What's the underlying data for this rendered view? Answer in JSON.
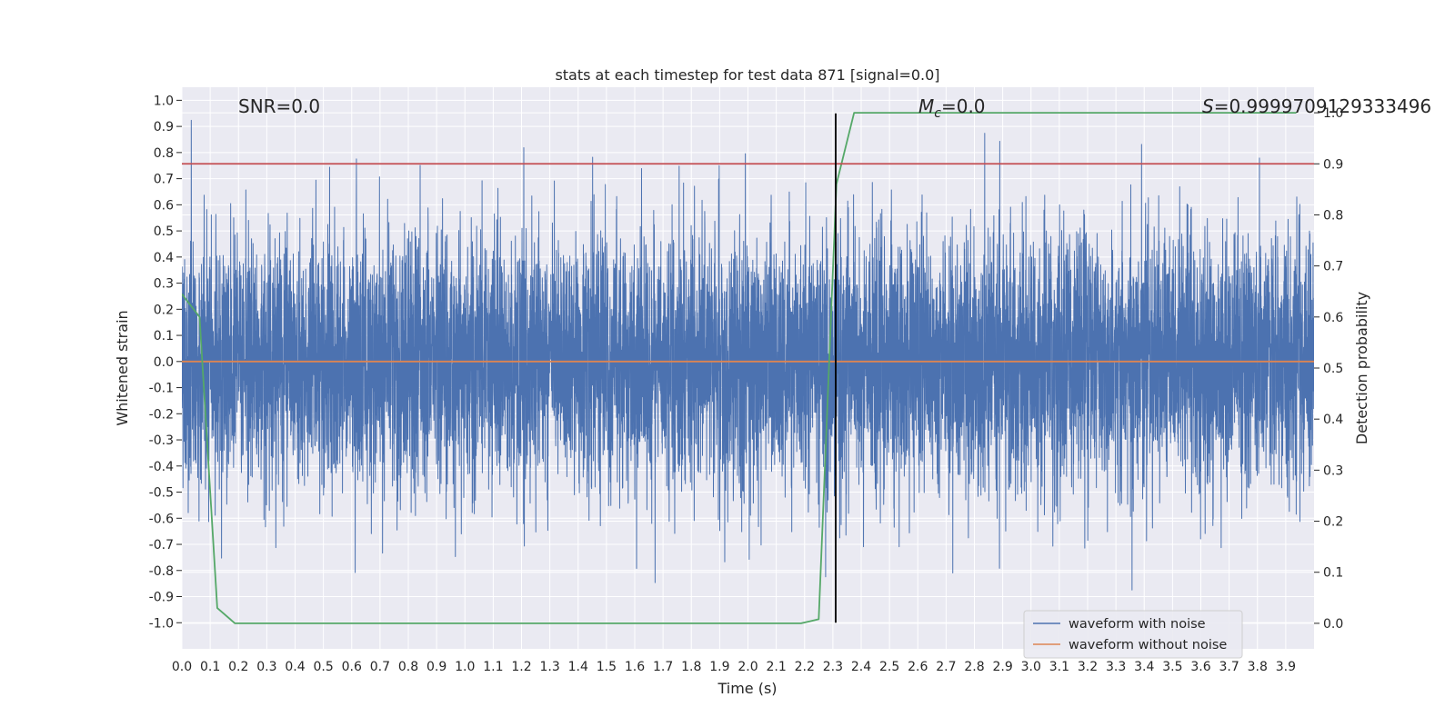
{
  "chart_data": {
    "type": "line",
    "title": "stats at each timestep for test data 871 [signal=0.0]",
    "xlabel": "Time (s)",
    "ylabel": "Whitened strain",
    "ylabel_right": "Detection probability",
    "xlim": [
      0.0,
      4.0
    ],
    "ylim": [
      -1.1,
      1.05
    ],
    "ylim_right": [
      -0.05,
      1.05
    ],
    "x_ticks": [
      "0.0",
      "0.1",
      "0.2",
      "0.3",
      "0.4",
      "0.5",
      "0.6",
      "0.7",
      "0.8",
      "0.9",
      "1.0",
      "1.1",
      "1.2",
      "1.3",
      "1.4",
      "1.5",
      "1.6",
      "1.7",
      "1.8",
      "1.9",
      "2.0",
      "2.1",
      "2.2",
      "2.3",
      "2.4",
      "2.5",
      "2.6",
      "2.7",
      "2.8",
      "2.9",
      "3.0",
      "3.1",
      "3.2",
      "3.3",
      "3.4",
      "3.5",
      "3.6",
      "3.7",
      "3.8",
      "3.9"
    ],
    "y_ticks": [
      "1.0",
      "0.9",
      "0.8",
      "0.7",
      "0.6",
      "0.5",
      "0.4",
      "0.3",
      "0.2",
      "0.1",
      "0.0",
      "-0.1",
      "-0.2",
      "-0.3",
      "-0.4",
      "-0.5",
      "-0.6",
      "-0.7",
      "-0.8",
      "-0.9",
      "-1.0"
    ],
    "y_right_ticks": [
      "1.0",
      "0.9",
      "0.8",
      "0.7",
      "0.6",
      "0.5",
      "0.4",
      "0.3",
      "0.2",
      "0.1",
      "0.0"
    ],
    "grid": true,
    "annotations": {
      "snr": "SNR=0.0",
      "mc": "=0.0",
      "mc_symbol": "M",
      "mc_subscript": "c",
      "s_symbol": "S",
      "s": "=0.9999709129333496"
    },
    "legend": {
      "position": "lower-right",
      "entries": [
        "waveform with noise",
        "waveform without noise"
      ]
    },
    "series": [
      {
        "name": "waveform with noise",
        "color": "#4c72b0",
        "axis": "left",
        "kind": "noise",
        "sample_rate": 2048,
        "duration": 4.0,
        "sigma": 0.24,
        "clip": [
          -1.0,
          0.95
        ]
      },
      {
        "name": "waveform without noise",
        "color": "#dd8452",
        "axis": "left",
        "x": [
          0.0,
          4.0
        ],
        "y": [
          0.0,
          0.0
        ]
      },
      {
        "name": "detection probability",
        "color": "#55a868",
        "axis": "right",
        "x": [
          0.0,
          0.0625,
          0.125,
          0.1875,
          0.25,
          0.3125,
          0.375,
          0.4375,
          0.5,
          0.5625,
          0.625,
          0.6875,
          0.75,
          0.8125,
          0.875,
          0.9375,
          1.0,
          1.0625,
          1.125,
          1.1875,
          1.25,
          1.3125,
          1.375,
          1.4375,
          1.5,
          1.5625,
          1.625,
          1.6875,
          1.75,
          1.8125,
          1.875,
          1.9375,
          2.0,
          2.0625,
          2.125,
          2.1875,
          2.25,
          2.3125,
          2.375,
          2.4375,
          2.5,
          2.5625,
          2.625,
          2.6875,
          2.75,
          2.8125,
          2.875,
          2.9375,
          3.0,
          3.0625,
          3.125,
          3.1875,
          3.25,
          3.3125,
          3.375,
          3.4375,
          3.5,
          3.5625,
          3.625,
          3.6875,
          3.75,
          3.8125,
          3.875,
          3.9375
        ],
        "y": [
          0.645,
          0.6,
          0.03,
          0.0,
          0.0,
          0.0,
          0.0,
          0.0,
          0.0,
          0.0,
          0.0,
          0.0,
          0.0,
          0.0,
          0.0,
          0.0,
          0.0,
          0.0,
          0.0,
          0.0,
          0.0,
          0.0,
          0.0,
          0.0,
          0.0,
          0.0,
          0.0,
          0.0,
          0.0,
          0.0,
          0.0,
          0.0,
          0.0,
          0.0,
          0.0,
          0.0,
          0.008,
          0.86,
          1.0,
          1.0,
          1.0,
          1.0,
          1.0,
          1.0,
          1.0,
          1.0,
          1.0,
          1.0,
          1.0,
          1.0,
          1.0,
          1.0,
          1.0,
          1.0,
          1.0,
          1.0,
          1.0,
          1.0,
          1.0,
          1.0,
          1.0,
          1.0,
          1.0,
          1.0
        ]
      },
      {
        "name": "threshold",
        "color": "#c44e52",
        "axis": "right",
        "x": [
          0.0,
          4.0
        ],
        "y": [
          0.9,
          0.9
        ]
      },
      {
        "name": "trigger",
        "color": "#000000",
        "axis": "left",
        "x": [
          2.31,
          2.31
        ],
        "y": [
          -1.0,
          0.95
        ]
      }
    ]
  }
}
